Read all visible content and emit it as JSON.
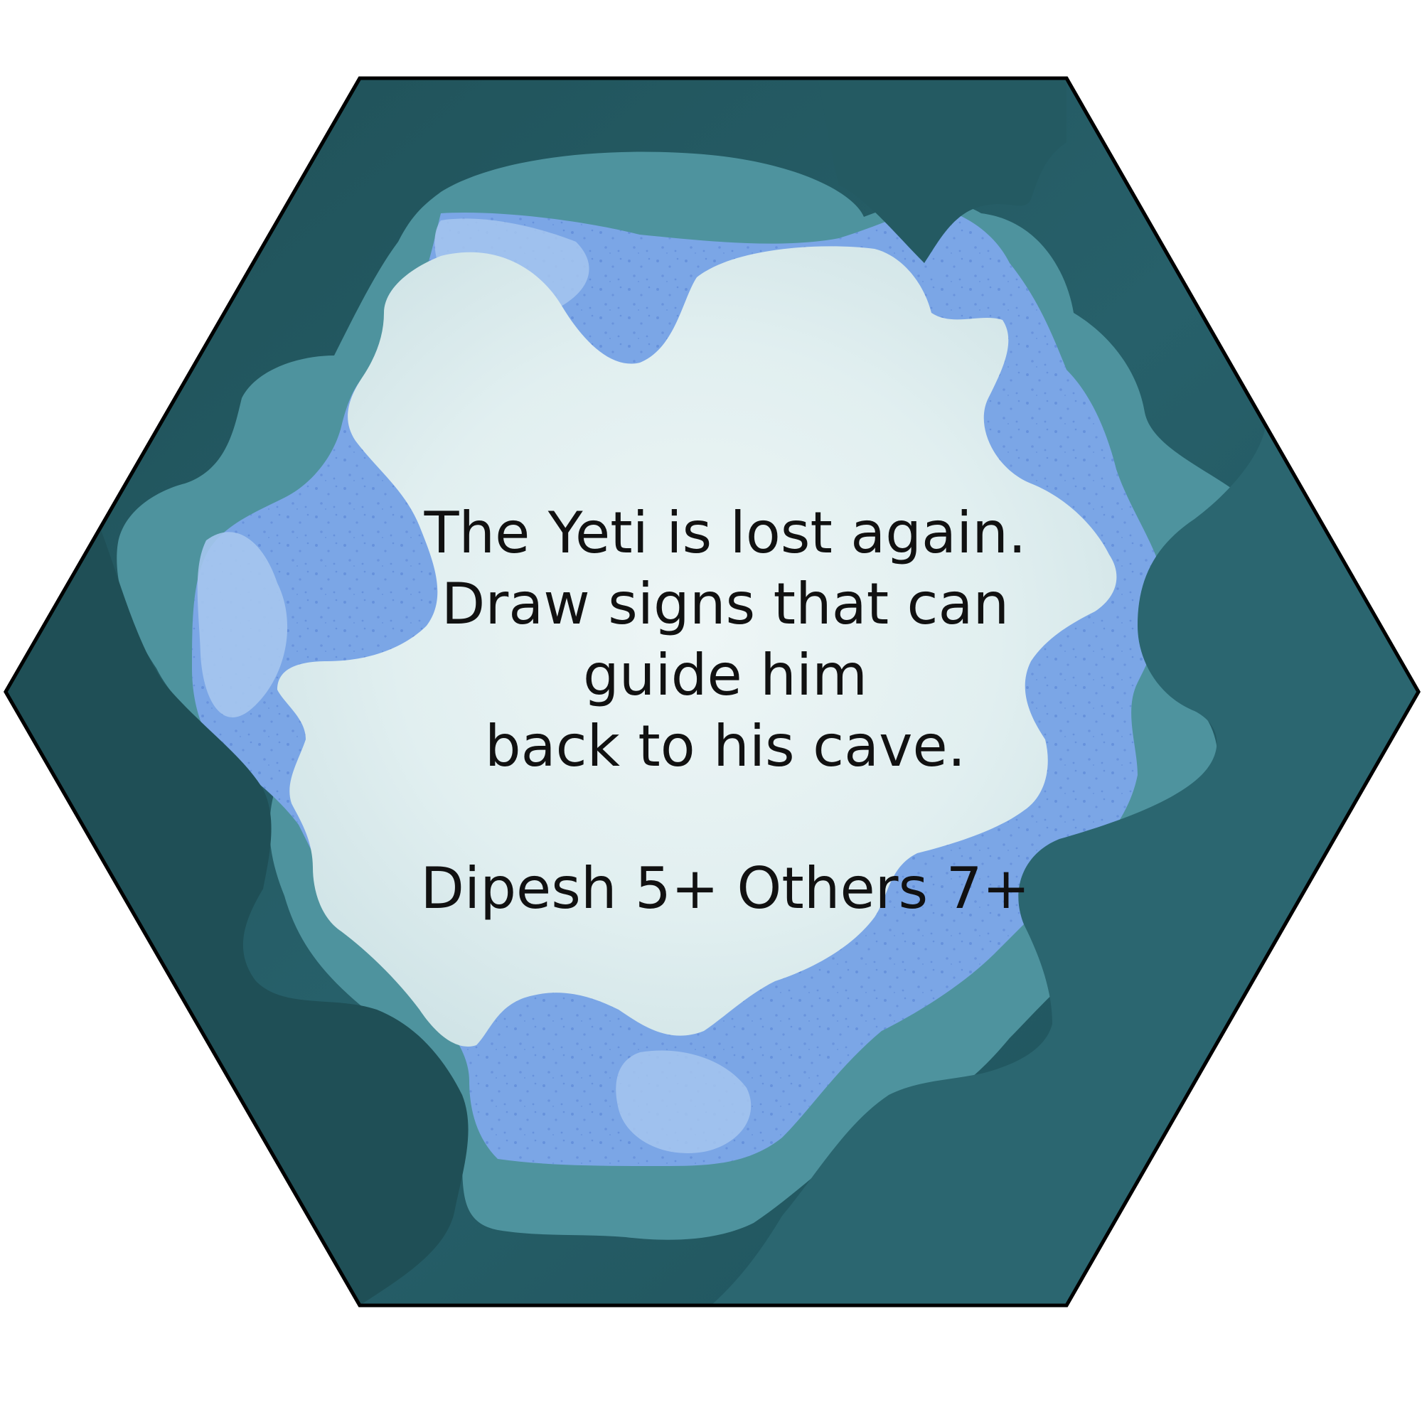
{
  "card": {
    "prompt_lines": [
      "The Yeti is lost again.",
      "Draw signs that can",
      "guide him",
      "back to his cave."
    ],
    "age_rating": "Dipesh 5+ Others 7+"
  },
  "colors": {
    "hex_outline": "#000000",
    "frame_dark": "#245a62",
    "frame_mid": "#4e939e",
    "ice_blue": "#7ba6e6",
    "ice_light": "#a6c6ee",
    "snow_center": "#e6f2f2",
    "text": "#111111"
  }
}
